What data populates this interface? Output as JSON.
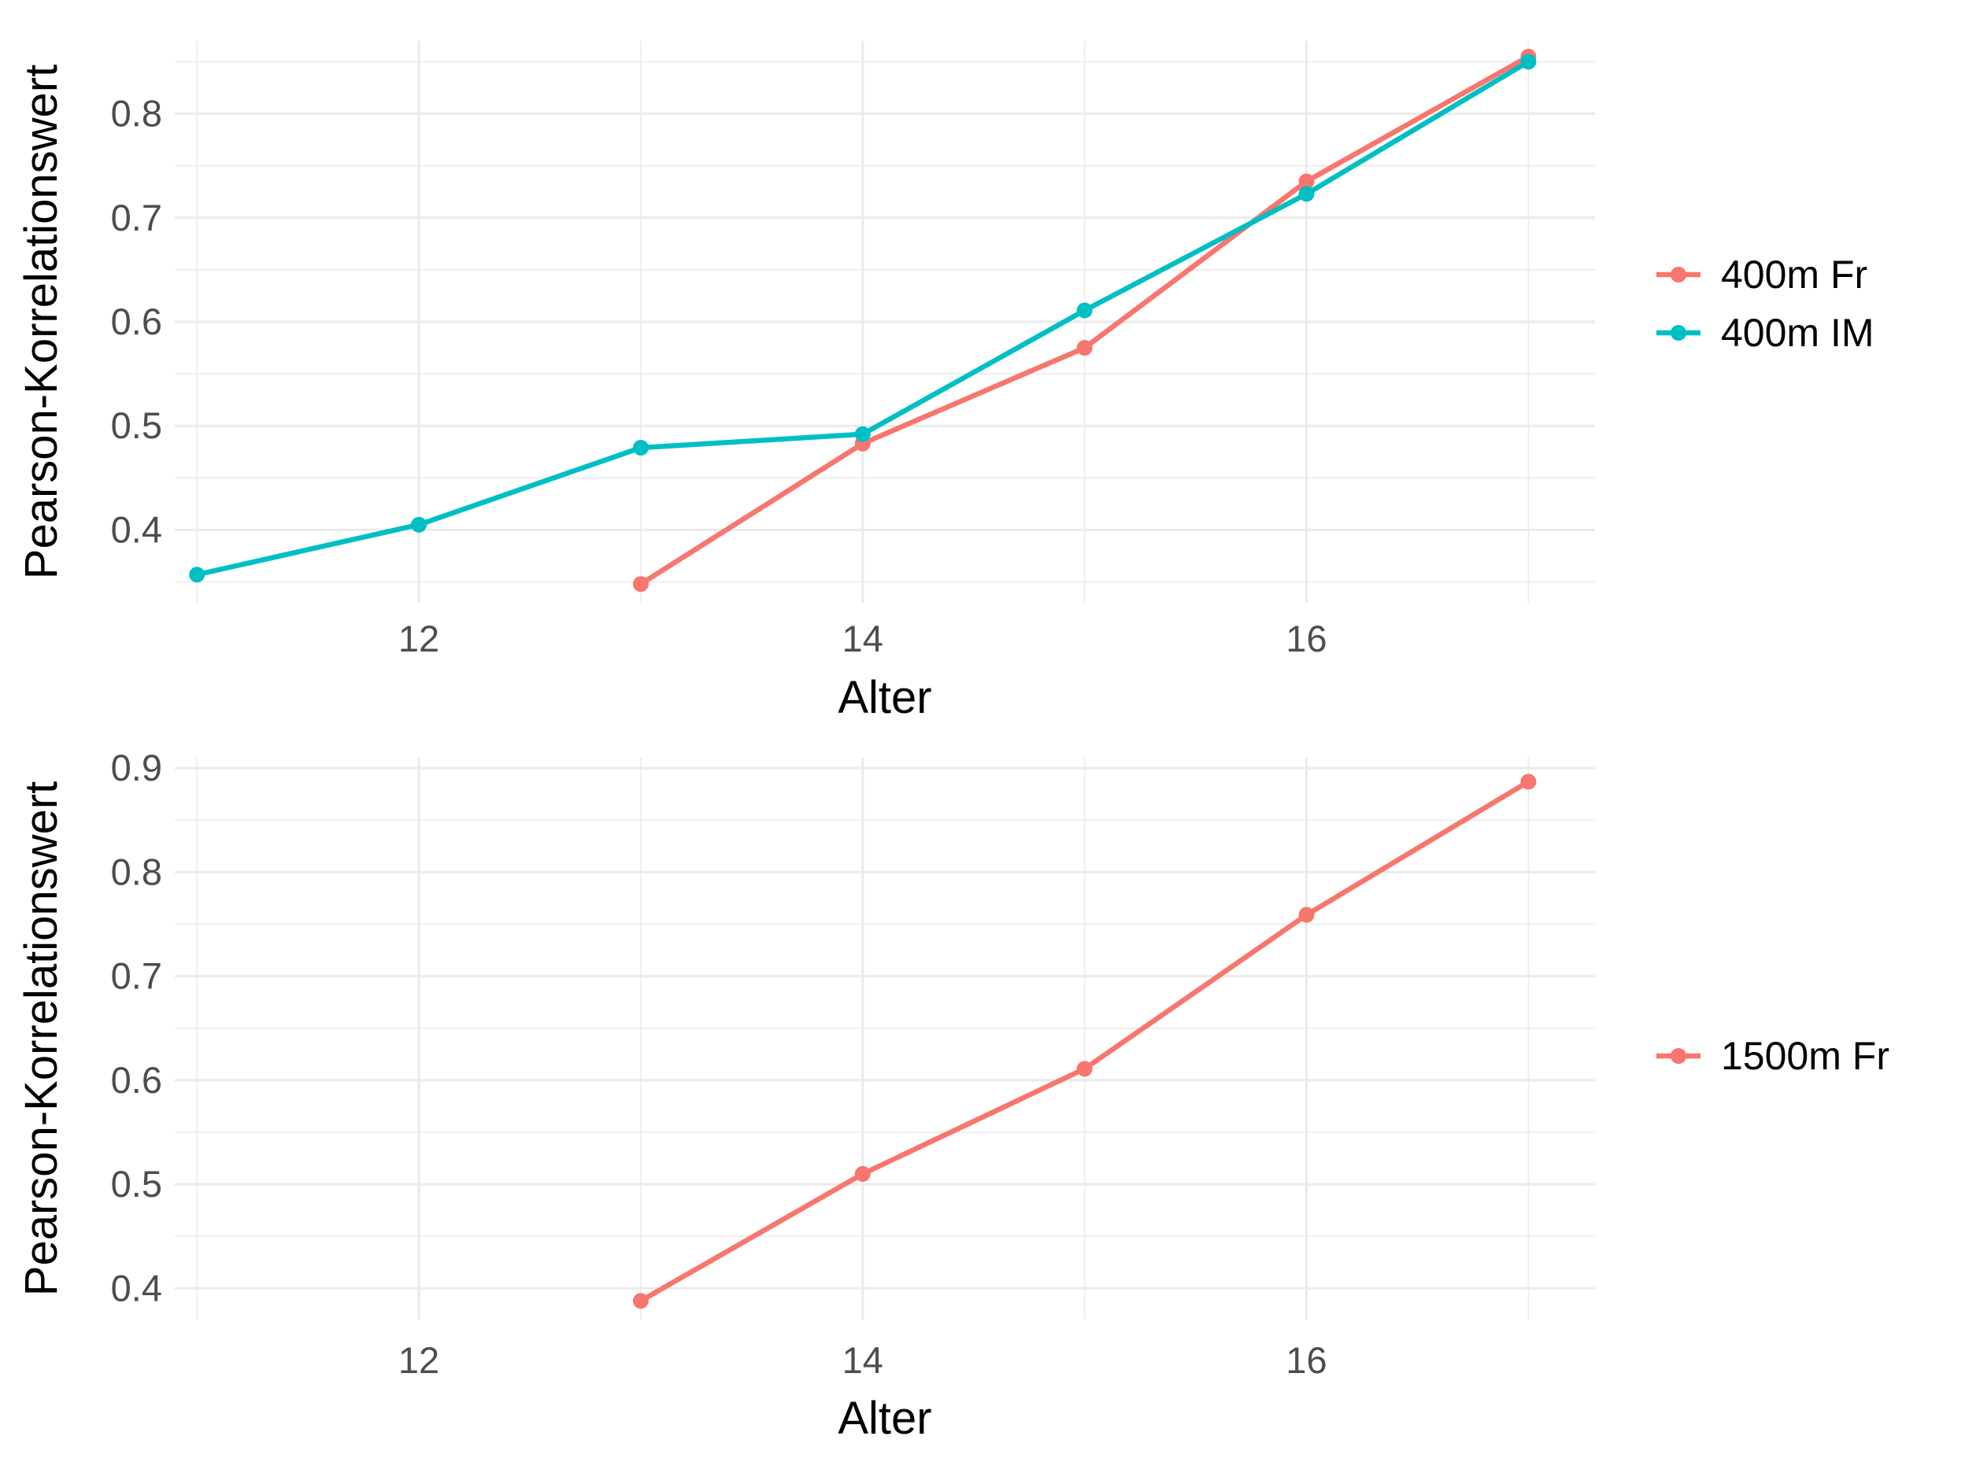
{
  "chart_data": [
    {
      "type": "line",
      "xlabel": "Alter",
      "ylabel": "Pearson-Korrelationswert",
      "xlim": [
        10.9,
        17.3
      ],
      "ylim": [
        0.33,
        0.87
      ],
      "x_ticks": [
        12,
        14,
        16
      ],
      "y_ticks": [
        0.4,
        0.5,
        0.6,
        0.7,
        0.8
      ],
      "grid": true,
      "legend_position": "right",
      "series": [
        {
          "name": "400m Fr",
          "color": "#F8766D",
          "points": [
            {
              "x": 13,
              "y": 0.348
            },
            {
              "x": 14,
              "y": 0.483
            },
            {
              "x": 15,
              "y": 0.575
            },
            {
              "x": 16,
              "y": 0.735
            },
            {
              "x": 17,
              "y": 0.855
            }
          ]
        },
        {
          "name": "400m IM",
          "color": "#00BFC4",
          "points": [
            {
              "x": 11,
              "y": 0.357
            },
            {
              "x": 12,
              "y": 0.405
            },
            {
              "x": 13,
              "y": 0.479
            },
            {
              "x": 14,
              "y": 0.492
            },
            {
              "x": 15,
              "y": 0.611
            },
            {
              "x": 16,
              "y": 0.723
            },
            {
              "x": 17,
              "y": 0.85
            }
          ]
        }
      ]
    },
    {
      "type": "line",
      "xlabel": "Alter",
      "ylabel": "Pearson-Korrelationswert",
      "xlim": [
        10.9,
        17.3
      ],
      "ylim": [
        0.37,
        0.91
      ],
      "x_ticks": [
        12,
        14,
        16
      ],
      "y_ticks": [
        0.4,
        0.5,
        0.6,
        0.7,
        0.8,
        0.9
      ],
      "grid": true,
      "legend_position": "right",
      "series": [
        {
          "name": "1500m Fr",
          "color": "#F8766D",
          "points": [
            {
              "x": 13,
              "y": 0.388
            },
            {
              "x": 14,
              "y": 0.51
            },
            {
              "x": 15,
              "y": 0.611
            },
            {
              "x": 16,
              "y": 0.759
            },
            {
              "x": 17,
              "y": 0.887
            }
          ]
        }
      ]
    }
  ]
}
